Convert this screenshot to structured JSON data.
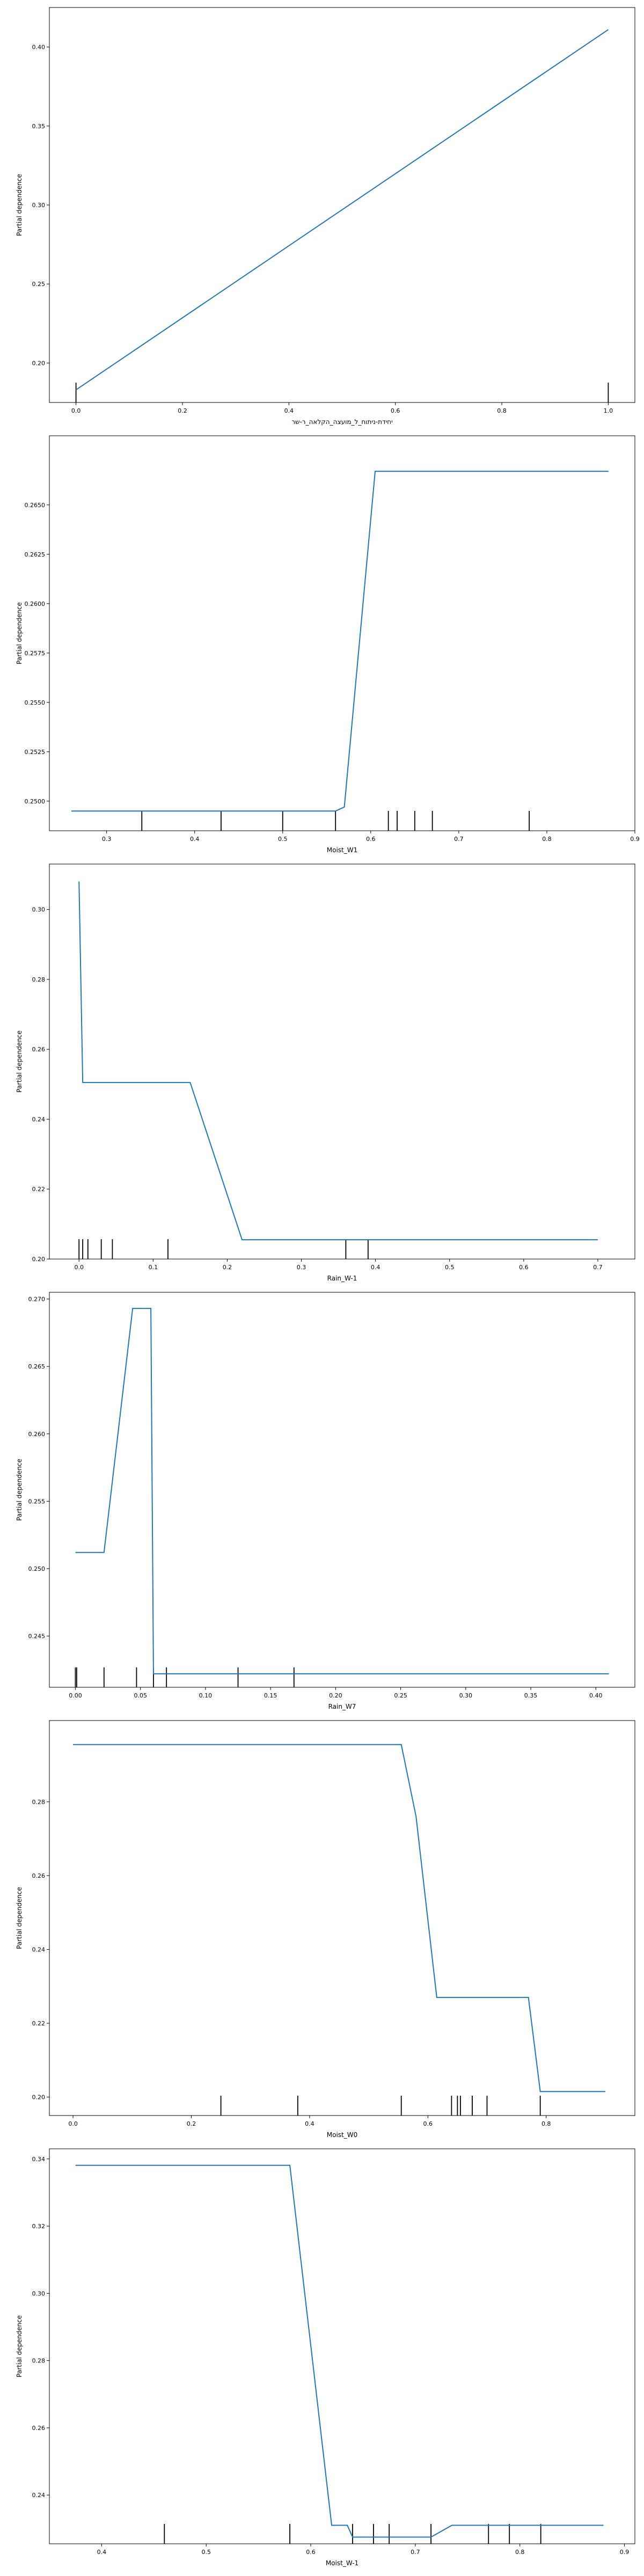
{
  "figure": {
    "background": "#ffffff",
    "line_color": "#1f77b4",
    "rug_color": "#000000"
  },
  "chart_data": [
    {
      "type": "line",
      "xlabel": "יחידת-ניתוח_ל_מועצה_הקלאה_ר-שר",
      "ylabel": "Partial dependence",
      "xlim": [
        -0.05,
        1.05
      ],
      "ylim": [
        0.175,
        0.425
      ],
      "xticks": [
        "0.0",
        "0.2",
        "0.4",
        "0.6",
        "0.8",
        "1.0"
      ],
      "yticks": [
        "0.20",
        "0.25",
        "0.30",
        "0.35",
        "0.40"
      ],
      "x": [
        0.0,
        1.0
      ],
      "y": [
        0.183,
        0.411
      ],
      "rug": [
        0.0,
        1.0
      ]
    },
    {
      "type": "line",
      "xlabel": "Moist_W1",
      "ylabel": "Partial dependence",
      "xlim": [
        0.235,
        0.9
      ],
      "ylim": [
        0.2485,
        0.2685
      ],
      "xticks": [
        "0.3",
        "0.4",
        "0.5",
        "0.6",
        "0.7",
        "0.8",
        "0.9"
      ],
      "yticks": [
        "0.2500",
        "0.2525",
        "0.2550",
        "0.2575",
        "0.2600",
        "0.2625",
        "0.2650"
      ],
      "x": [
        0.26,
        0.56,
        0.57,
        0.605,
        0.87
      ],
      "y": [
        0.2495,
        0.2495,
        0.2497,
        0.2667,
        0.2667
      ],
      "rug": [
        0.34,
        0.43,
        0.5,
        0.56,
        0.62,
        0.63,
        0.65,
        0.67,
        0.78
      ]
    },
    {
      "type": "line",
      "xlabel": "Rain_W-1",
      "ylabel": "Partial dependence",
      "xlim": [
        -0.04,
        0.75
      ],
      "ylim": [
        0.2,
        0.313
      ],
      "xticks": [
        "0.0",
        "0.1",
        "0.2",
        "0.3",
        "0.4",
        "0.5",
        "0.6",
        "0.7"
      ],
      "yticks": [
        "0.20",
        "0.22",
        "0.24",
        "0.26",
        "0.28",
        "0.30"
      ],
      "x": [
        0.0,
        0.005,
        0.15,
        0.22,
        0.7
      ],
      "y": [
        0.308,
        0.2505,
        0.2505,
        0.2055,
        0.2055
      ],
      "rug": [
        0.0,
        0.005,
        0.012,
        0.03,
        0.045,
        0.12,
        0.36,
        0.39
      ]
    },
    {
      "type": "line",
      "xlabel": "Rain_W7",
      "ylabel": "Partial dependence",
      "xlim": [
        -0.02,
        0.43
      ],
      "ylim": [
        0.2412,
        0.2705
      ],
      "xticks": [
        "0.00",
        "0.05",
        "0.10",
        "0.15",
        "0.20",
        "0.25",
        "0.30",
        "0.35",
        "0.40"
      ],
      "yticks": [
        "0.245",
        "0.250",
        "0.255",
        "0.260",
        "0.265",
        "0.270"
      ],
      "x": [
        0.0,
        0.022,
        0.044,
        0.058,
        0.06,
        0.41
      ],
      "y": [
        0.2512,
        0.2512,
        0.2693,
        0.2693,
        0.2422,
        0.2422
      ],
      "rug": [
        0.0,
        0.001,
        0.022,
        0.047,
        0.06,
        0.07,
        0.125,
        0.168
      ]
    },
    {
      "type": "line",
      "xlabel": "Moist_W0",
      "ylabel": "Partial dependence",
      "xlim": [
        -0.04,
        0.95
      ],
      "ylim": [
        0.195,
        0.302
      ],
      "xticks": [
        "0.0",
        "0.2",
        "0.4",
        "0.6",
        "0.8"
      ],
      "yticks": [
        "0.20",
        "0.22",
        "0.24",
        "0.26",
        "0.28"
      ],
      "x": [
        0.0,
        0.555,
        0.58,
        0.615,
        0.77,
        0.79,
        0.9
      ],
      "y": [
        0.2955,
        0.2955,
        0.276,
        0.227,
        0.227,
        0.2015,
        0.2015
      ],
      "rug": [
        0.25,
        0.38,
        0.555,
        0.64,
        0.65,
        0.655,
        0.675,
        0.7,
        0.79
      ]
    },
    {
      "type": "line",
      "xlabel": "Moist_W-1",
      "ylabel": "Partial dependence",
      "xlim": [
        0.35,
        0.91
      ],
      "ylim": [
        0.2255,
        0.343
      ],
      "xticks": [
        "0.4",
        "0.5",
        "0.6",
        "0.7",
        "0.8",
        "0.9"
      ],
      "yticks": [
        "0.24",
        "0.26",
        "0.28",
        "0.30",
        "0.32",
        "0.34"
      ],
      "x": [
        0.375,
        0.58,
        0.62,
        0.635,
        0.64,
        0.715,
        0.735,
        0.88
      ],
      "y": [
        0.3381,
        0.3381,
        0.231,
        0.231,
        0.2275,
        0.2275,
        0.231,
        0.231
      ],
      "rug": [
        0.46,
        0.58,
        0.64,
        0.66,
        0.675,
        0.715,
        0.77,
        0.79,
        0.82
      ]
    }
  ]
}
